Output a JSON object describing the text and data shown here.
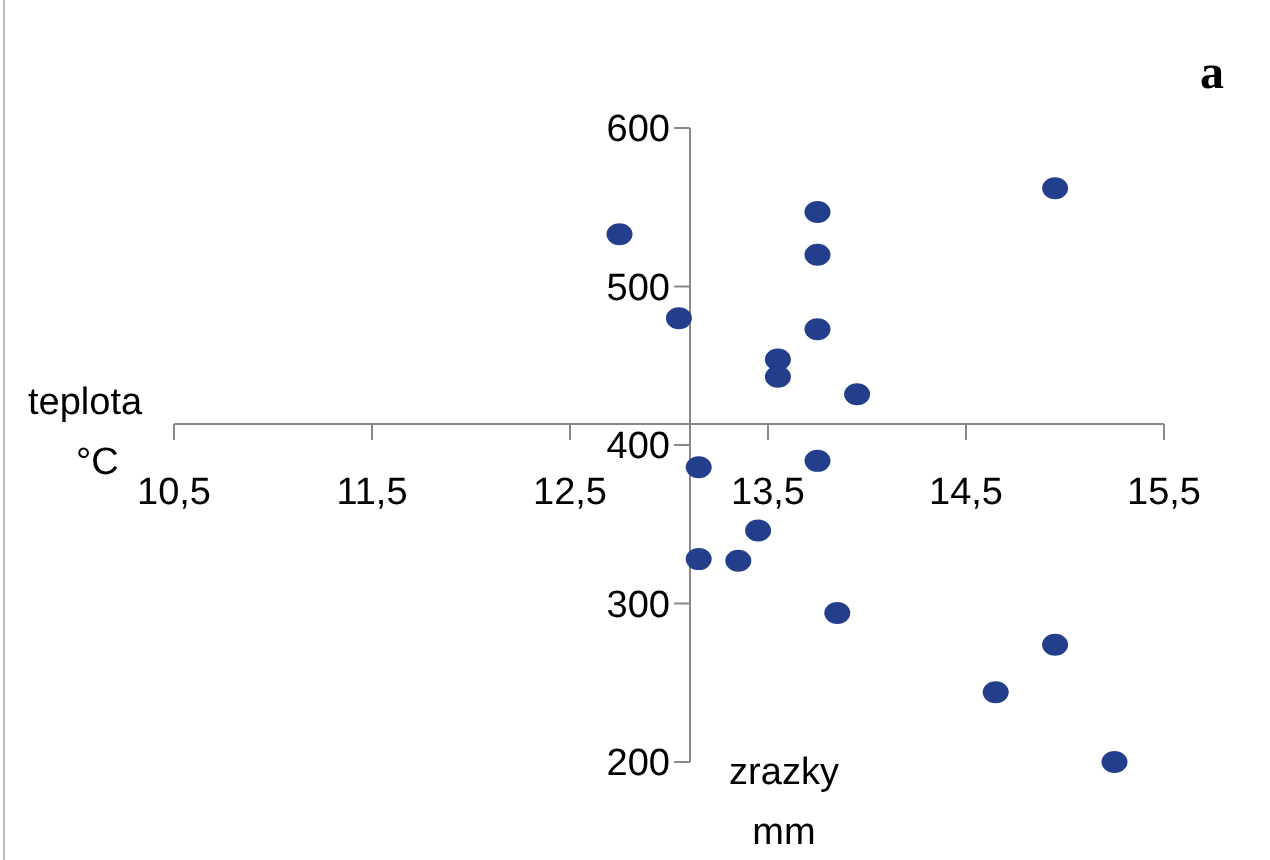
{
  "chart_data": {
    "type": "scatter",
    "title": "a",
    "xlabel": "zrazky\nmm",
    "ylabel": "teplota\n°C",
    "marker": "circle",
    "grid": false,
    "xlim": [
      10.5,
      15.5
    ],
    "xticks": [
      {
        "value": 10.5,
        "label": "10,5"
      },
      {
        "value": 11.5,
        "label": "11,5"
      },
      {
        "value": 12.5,
        "label": "12,5"
      },
      {
        "value": 13.5,
        "label": "13,5"
      },
      {
        "value": 14.5,
        "label": "14,5"
      },
      {
        "value": 15.5,
        "label": "15,5"
      }
    ],
    "ylim": [
      200,
      600
    ],
    "yticks": [
      200,
      300,
      400,
      500,
      600
    ],
    "series": [
      {
        "color": "#233e8b",
        "x": [
          12.75,
          13.05,
          13.75,
          13.75,
          13.75,
          13.55,
          13.55,
          13.95,
          14.95,
          13.15,
          13.75,
          13.45,
          13.15,
          13.35,
          13.85,
          14.95,
          14.65,
          15.25
        ],
        "values": [
          533,
          480,
          547,
          520,
          473,
          454,
          443,
          432,
          562,
          386,
          390,
          346,
          328,
          327,
          294,
          274,
          244,
          200
        ]
      }
    ]
  }
}
